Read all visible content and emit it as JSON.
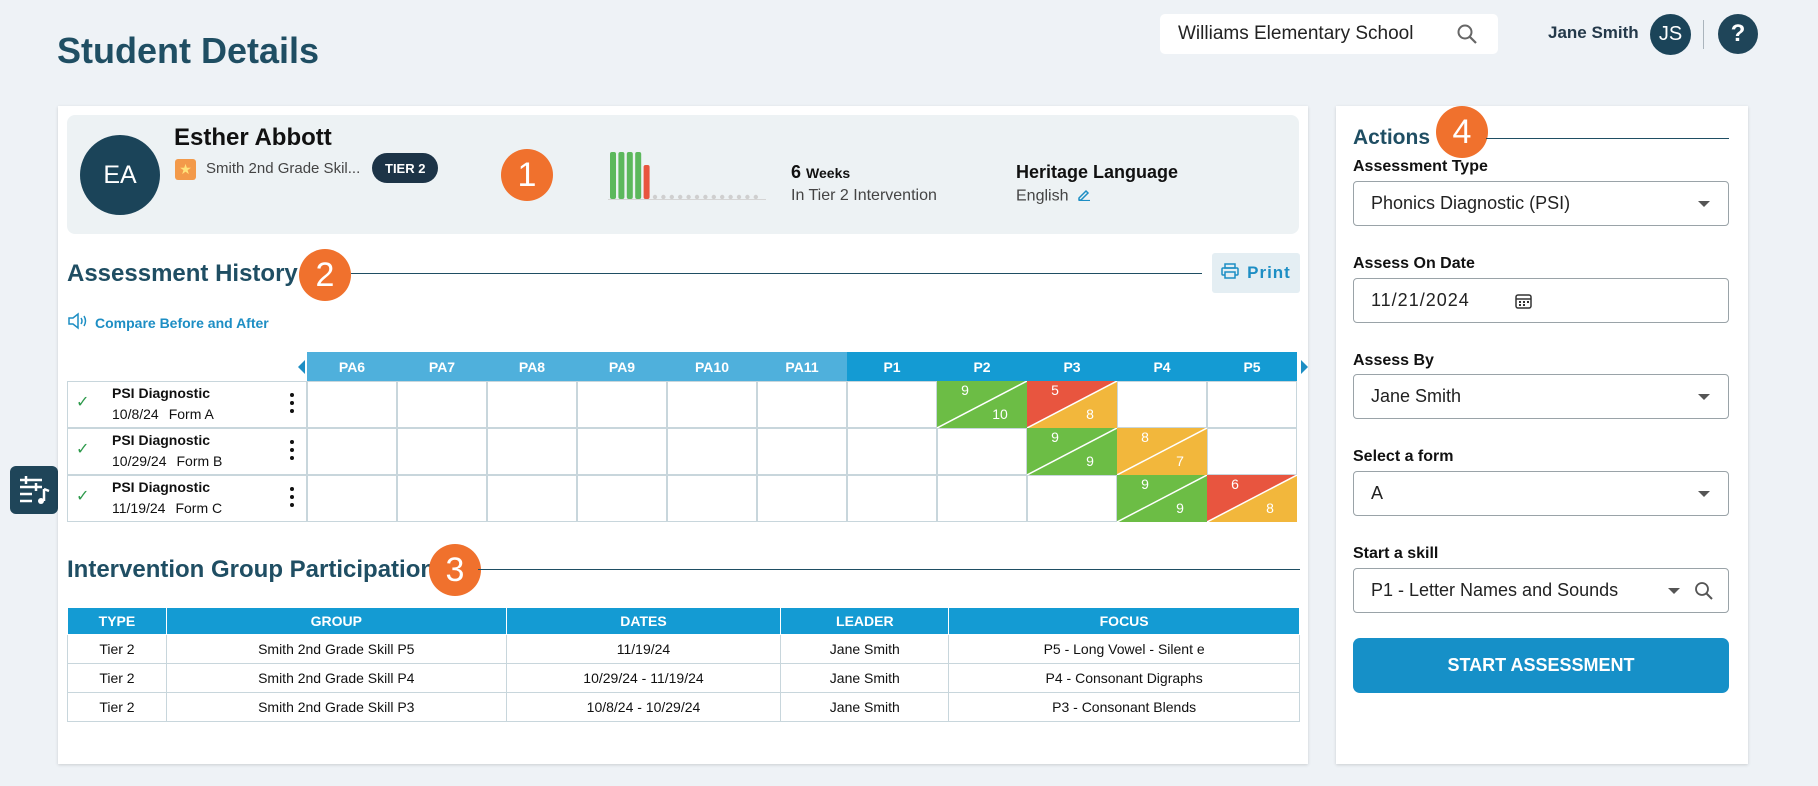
{
  "page": {
    "title": "Student Details"
  },
  "topbar": {
    "school": "Williams Elementary School",
    "user_name": "Jane Smith",
    "user_initials": "JS",
    "help_glyph": "?"
  },
  "student": {
    "initials": "EA",
    "name": "Esther Abbott",
    "group": "Smith 2nd Grade Skil...",
    "tier": "TIER 2",
    "weeks_count": "6",
    "weeks_unit": "Weeks",
    "weeks_sub": "In Tier 2 Intervention",
    "heritage_label": "Heritage Language",
    "heritage_value": "English",
    "progress_bars": {
      "filled": 5,
      "total": 18,
      "colors": [
        "#5cb85c",
        "#5cb85c",
        "#5cb85c",
        "#5cb85c",
        "#e8553f"
      ]
    }
  },
  "callouts": [
    "1",
    "2",
    "3",
    "4"
  ],
  "assessment_history": {
    "title": "Assessment History",
    "print_label": "Print",
    "compare_label": "Compare Before and After",
    "columns": [
      "PA6",
      "PA7",
      "PA8",
      "PA9",
      "PA10",
      "PA11",
      "P1",
      "P2",
      "P3",
      "P4",
      "P5"
    ],
    "rows": [
      {
        "name": "PSI Diagnostic",
        "date": "10/8/24",
        "form": "Form A"
      },
      {
        "name": "PSI Diagnostic",
        "date": "10/29/24",
        "form": "Form B"
      },
      {
        "name": "PSI Diagnostic",
        "date": "11/19/24",
        "form": "Form C"
      }
    ],
    "scores": [
      {
        "row": 0,
        "col": 7,
        "top": "9",
        "bottom": "10",
        "top_color": "#6cbd45",
        "bottom_color": "#6cbd45"
      },
      {
        "row": 0,
        "col": 8,
        "top": "5",
        "bottom": "8",
        "top_color": "#e8553f",
        "bottom_color": "#f2b73c"
      },
      {
        "row": 1,
        "col": 8,
        "top": "9",
        "bottom": "9",
        "top_color": "#6cbd45",
        "bottom_color": "#6cbd45"
      },
      {
        "row": 1,
        "col": 9,
        "top": "8",
        "bottom": "7",
        "top_color": "#f2b73c",
        "bottom_color": "#f2b73c"
      },
      {
        "row": 2,
        "col": 9,
        "top": "9",
        "bottom": "9",
        "top_color": "#6cbd45",
        "bottom_color": "#6cbd45"
      },
      {
        "row": 2,
        "col": 10,
        "top": "6",
        "bottom": "8",
        "top_color": "#e8553f",
        "bottom_color": "#f2b73c"
      }
    ]
  },
  "intervention": {
    "title": "Intervention Group Participation",
    "headers": [
      "TYPE",
      "GROUP",
      "DATES",
      "LEADER",
      "FOCUS"
    ],
    "rows": [
      [
        "Tier 2",
        "Smith 2nd Grade Skill P5",
        "11/19/24",
        "Jane Smith",
        "P5 - Long Vowel - Silent e"
      ],
      [
        "Tier 2",
        "Smith 2nd Grade Skill P4",
        "10/29/24 - 11/19/24",
        "Jane Smith",
        "P4 - Consonant Digraphs"
      ],
      [
        "Tier 2",
        "Smith 2nd Grade Skill P3",
        "10/8/24 - 10/29/24",
        "Jane Smith",
        "P3 - Consonant Blends"
      ]
    ]
  },
  "actions": {
    "title": "Actions",
    "assessment_type_label": "Assessment Type",
    "assessment_type_value": "Phonics Diagnostic (PSI)",
    "assess_date_label": "Assess On Date",
    "assess_date_value": "11/21/2024",
    "assess_by_label": "Assess By",
    "assess_by_value": "Jane Smith",
    "form_label": "Select a form",
    "form_value": "A",
    "skill_label": "Start a skill",
    "skill_value": "P1 - Letter Names and Sounds",
    "start_label": "START ASSESSMENT"
  }
}
